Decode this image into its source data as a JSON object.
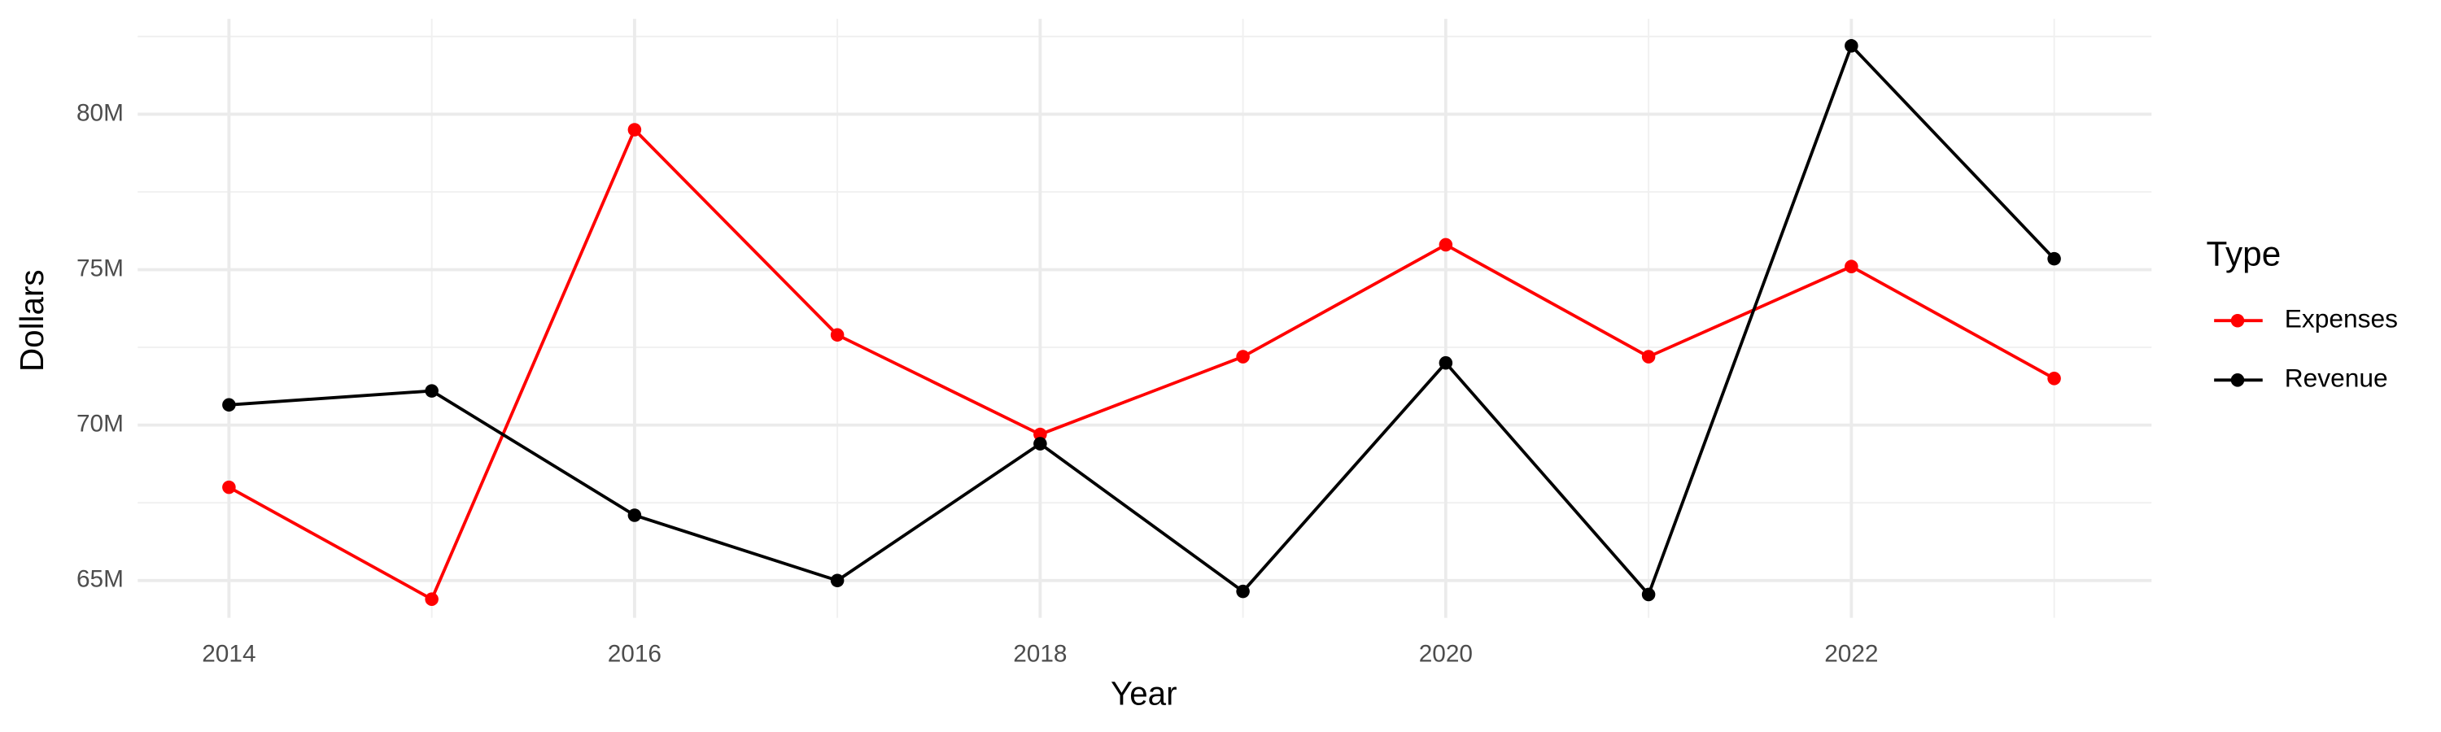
{
  "chart_data": {
    "type": "line",
    "x_label": "Year",
    "y_label": "Dollars",
    "legend_title": "Type",
    "legend_position": "right",
    "grid": true,
    "x": [
      2014,
      2015,
      2016,
      2017,
      2018,
      2019,
      2020,
      2021,
      2022,
      2023
    ],
    "series": [
      {
        "name": "Expenses",
        "color": "#ff0000",
        "values": [
          68000000,
          64400000,
          79500000,
          72900000,
          69700000,
          72200000,
          75800000,
          72200000,
          75100000,
          71500000
        ]
      },
      {
        "name": "Revenue",
        "color": "#000000",
        "values": [
          70650000,
          71100000,
          67100000,
          65000000,
          69400000,
          64650000,
          72000000,
          64550000,
          82200000,
          75350000
        ]
      }
    ],
    "xlim": [
      2013.55,
      2023.48
    ],
    "xticks": [
      2014,
      2016,
      2018,
      2020,
      2022
    ],
    "ylim": [
      63800000,
      83070000
    ],
    "yticks": [
      {
        "value": 65000000,
        "label": "65M"
      },
      {
        "value": 70000000,
        "label": "70M"
      },
      {
        "value": 75000000,
        "label": "75M"
      },
      {
        "value": 80000000,
        "label": "80M"
      }
    ]
  }
}
